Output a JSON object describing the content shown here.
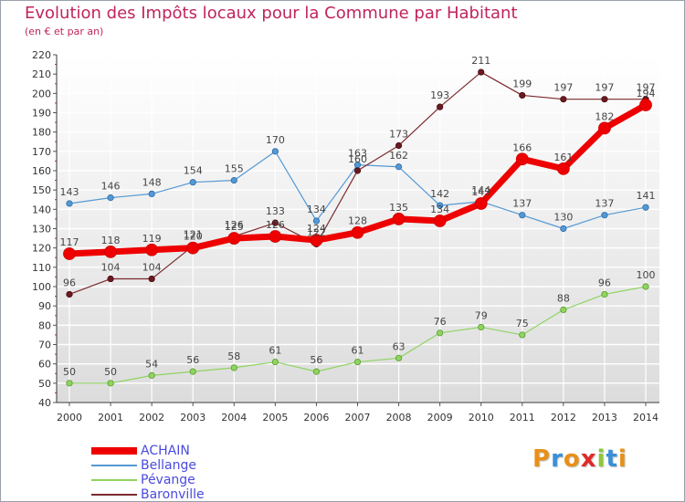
{
  "title": "Evolution des Impôts locaux pour la Commune par Habitant",
  "subtitle": "(en € et par an)",
  "logo": {
    "letters": [
      "P",
      "r",
      "o",
      "x",
      "i",
      "t",
      "i"
    ],
    "colors": [
      "#e8901a",
      "#3a8fd8",
      "#e8901a",
      "#e02a2a",
      "#8cc83c",
      "#3a8fd8",
      "#e8901a"
    ]
  },
  "chart_data": {
    "type": "line",
    "title": "Evolution des Impôts locaux pour la Commune par Habitant",
    "subtitle": "(en € et par an)",
    "x": [
      "2000",
      "2001",
      "2002",
      "2003",
      "2004",
      "2005",
      "2006",
      "2007",
      "2008",
      "2009",
      "2010",
      "2011",
      "2012",
      "2013",
      "2014"
    ],
    "ylim": [
      40,
      220
    ],
    "yticks": [
      40,
      50,
      60,
      70,
      80,
      90,
      100,
      110,
      120,
      130,
      140,
      150,
      160,
      170,
      180,
      190,
      200,
      210,
      220
    ],
    "grid": true,
    "legend_position": "bottom-left",
    "series": [
      {
        "name": "Pévange",
        "color": "#8fd460",
        "dot": "#8fd460",
        "dotStroke": "#5a9a30",
        "width": 1.2,
        "r": 3.2,
        "labels": true,
        "values": [
          50,
          50,
          54,
          56,
          58,
          61,
          56,
          61,
          63,
          76,
          79,
          75,
          88,
          96,
          100
        ]
      },
      {
        "name": "Bellange",
        "color": "#5599d4",
        "dot": "#5599d4",
        "dotStroke": "#2a6aa8",
        "width": 1.2,
        "r": 3.2,
        "labels": true,
        "values": [
          143,
          146,
          148,
          154,
          155,
          170,
          134,
          163,
          162,
          142,
          144,
          137,
          130,
          137,
          141
        ]
      },
      {
        "name": "Baronville",
        "color": "#7b2a2e",
        "dot": "#6a1a20",
        "dotStroke": "#4a0a10",
        "width": 1.2,
        "r": 3.2,
        "labels": true,
        "values": [
          96,
          104,
          104,
          121,
          126,
          133,
          122,
          160,
          173,
          193,
          211,
          199,
          197,
          197,
          197
        ]
      },
      {
        "name": "ACHAIN",
        "color": "#ee0000",
        "dot": "#ee0000",
        "dotStroke": "#cc0000",
        "width": 7,
        "r": 6.5,
        "labels": true,
        "values": [
          117,
          118,
          119,
          120,
          125,
          126,
          124,
          128,
          135,
          134,
          143,
          166,
          161,
          182,
          194
        ]
      }
    ],
    "legend_order": [
      "ACHAIN",
      "Bellange",
      "Pévange",
      "Baronville"
    ]
  }
}
